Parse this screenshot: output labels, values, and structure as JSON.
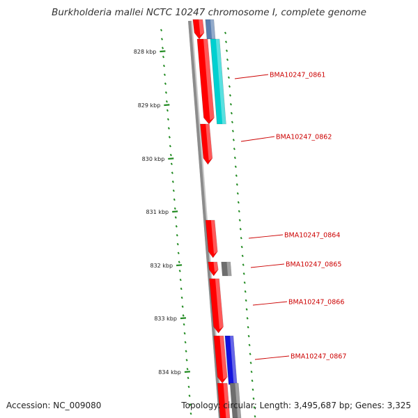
{
  "title": "Burkholderia mallei NCTC 10247 chromosome I, complete genome",
  "footer": {
    "accession": "Accession: NC_009080",
    "summary": "Topology: circular; Length: 3,495,687 bp; Genes: 3,325"
  },
  "colors": {
    "backbone": "#8c8c8c",
    "forward_feature": "#ff0000",
    "cds_cyan": "#00d0d0",
    "cds_blue": "#1414dc",
    "cds_grey": "#6e6e6e",
    "cds_steel": "#5a7fb0",
    "gc_dash": "#228b22",
    "label": "#cc0000"
  },
  "ruler": [
    {
      "label": "828 kbp"
    },
    {
      "label": "829 kbp"
    },
    {
      "label": "830 kbp"
    },
    {
      "label": "831 kbp"
    },
    {
      "label": "832 kbp"
    },
    {
      "label": "833 kbp"
    },
    {
      "label": "834 kbp"
    }
  ],
  "gene_labels": [
    {
      "name": "BMA10247_0861"
    },
    {
      "name": "BMA10247_0862"
    },
    {
      "name": "BMA10247_0864"
    },
    {
      "name": "BMA10247_0865"
    },
    {
      "name": "BMA10247_0866"
    },
    {
      "name": "BMA10247_0867"
    }
  ]
}
